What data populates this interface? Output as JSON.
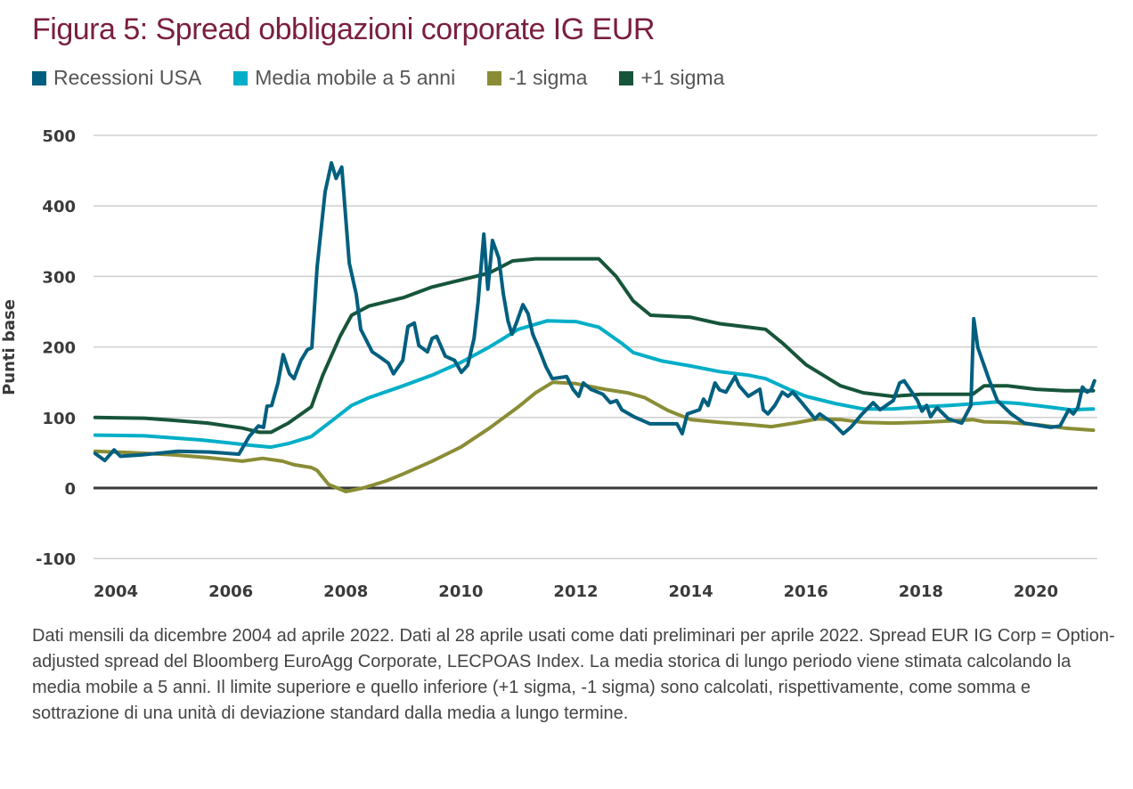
{
  "title": "Figura 5: Spread obbligazioni corporate IG EUR",
  "footnote": "Dati mensili da dicembre 2004 ad aprile 2022. Dati al 28 aprile usati come dati preliminari per aprile 2022. Spread EUR IG Corp = Option-adjusted spread del Bloomberg EuroAgg Corporate, LECPOAS Index. La media storica di lungo periodo viene stimata calcolando la media mobile a 5 anni. Il limite superiore e quello inferiore (+1 sigma, -1 sigma) sono calcolati, rispettivamente, come somma e sottrazione di una unità di deviazione standard dalla media a lungo termine.",
  "chart_data": {
    "type": "line",
    "title": "Figura 5: Spread obbligazioni corporate IG EUR",
    "xlabel": "",
    "ylabel": "Punti base",
    "xticks": [
      "2004",
      "2006",
      "2008",
      "2010",
      "2012",
      "2014",
      "2016",
      "2018",
      "2020"
    ],
    "yticks": [
      "500",
      "400",
      "300",
      "200",
      "100",
      "0",
      "-100"
    ],
    "xlim": [
      2003.6,
      2021.05
    ],
    "ylim": [
      -100,
      500
    ],
    "grid": true,
    "legend_position": "top-left",
    "series": [
      {
        "name": "Recessioni USA",
        "color": "#005f7f",
        "x": [
          2003.64,
          2003.81,
          2003.97,
          2004.08,
          2004.46,
          2005.08,
          2005.63,
          2006.14,
          2006.32,
          2006.48,
          2006.57,
          2006.63,
          2006.71,
          2006.82,
          2006.91,
          2007.02,
          2007.1,
          2007.22,
          2007.33,
          2007.41,
          2007.5,
          2007.64,
          2007.75,
          2007.83,
          2007.93,
          2008.06,
          2008.18,
          2008.26,
          2008.46,
          2008.57,
          2008.74,
          2008.83,
          2008.99,
          2009.08,
          2009.19,
          2009.27,
          2009.42,
          2009.5,
          2009.58,
          2009.73,
          2009.89,
          2010.01,
          2010.12,
          2010.23,
          2010.3,
          2010.4,
          2010.47,
          2010.55,
          2010.66,
          2010.74,
          2010.82,
          2010.89,
          2010.97,
          2011.08,
          2011.17,
          2011.25,
          2011.36,
          2011.48,
          2011.59,
          2011.84,
          2011.95,
          2012.05,
          2012.13,
          2012.26,
          2012.47,
          2012.6,
          2012.71,
          2012.8,
          2013.01,
          2013.29,
          2013.76,
          2013.85,
          2013.94,
          2014.15,
          2014.22,
          2014.3,
          2014.42,
          2014.5,
          2014.61,
          2014.77,
          2014.84,
          2015.0,
          2015.2,
          2015.26,
          2015.34,
          2015.46,
          2015.59,
          2015.69,
          2015.77,
          2015.93,
          2016.16,
          2016.24,
          2016.47,
          2016.65,
          2016.78,
          2016.98,
          2017.17,
          2017.29,
          2017.52,
          2017.63,
          2017.71,
          2017.94,
          2018.02,
          2018.1,
          2018.17,
          2018.28,
          2018.48,
          2018.71,
          2018.87,
          2018.92,
          2018.99,
          2019.18,
          2019.33,
          2019.57,
          2019.8,
          2020.26,
          2020.42,
          2020.57,
          2020.65,
          2020.73,
          2020.81,
          2020.89,
          2020.96,
          2021.02
        ],
        "values": [
          49,
          39,
          54,
          45,
          47,
          52,
          51,
          48,
          73,
          88,
          86,
          116,
          117,
          149,
          189,
          162,
          155,
          181,
          196,
          199,
          313,
          420,
          461,
          439,
          455,
          319,
          275,
          225,
          193,
          187,
          177,
          162,
          181,
          229,
          234,
          202,
          193,
          212,
          215,
          187,
          181,
          164,
          174,
          212,
          263,
          360,
          282,
          351,
          326,
          275,
          237,
          218,
          235,
          260,
          247,
          218,
          197,
          172,
          155,
          158,
          140,
          130,
          149,
          140,
          133,
          121,
          124,
          111,
          101,
          91,
          91,
          77,
          105,
          111,
          126,
          117,
          149,
          139,
          136,
          158,
          145,
          130,
          140,
          111,
          105,
          117,
          136,
          130,
          136,
          121,
          98,
          105,
          92,
          77,
          86,
          105,
          121,
          111,
          124,
          149,
          152,
          124,
          109,
          117,
          101,
          114,
          98,
          92,
          117,
          240,
          199,
          155,
          124,
          105,
          92,
          86,
          88,
          111,
          105,
          114,
          143,
          136,
          139,
          152
        ]
      },
      {
        "name": "Media mobile a 5 anni",
        "color": "#00aec7",
        "x": [
          2003.64,
          2004.5,
          2005.5,
          2006.3,
          2006.7,
          2007.0,
          2007.4,
          2007.8,
          2008.1,
          2008.4,
          2009.0,
          2009.5,
          2010.0,
          2010.5,
          2011.0,
          2011.5,
          2012.0,
          2012.4,
          2012.8,
          2013.0,
          2013.5,
          2014.0,
          2014.5,
          2015.0,
          2015.3,
          2015.7,
          2016.0,
          2016.5,
          2017.0,
          2017.5,
          2018.0,
          2018.5,
          2019.0,
          2019.3,
          2019.7,
          2020.2,
          2020.6,
          2021.0
        ],
        "values": [
          75,
          74,
          68,
          61,
          58,
          63,
          73,
          98,
          117,
          128,
          145,
          160,
          178,
          200,
          225,
          237,
          236,
          228,
          205,
          192,
          180,
          173,
          165,
          160,
          155,
          140,
          130,
          120,
          112,
          112,
          115,
          117,
          120,
          122,
          120,
          115,
          111,
          112
        ]
      },
      {
        "name": "-1 sigma",
        "color": "#8a8d35",
        "x": [
          2003.64,
          2004.3,
          2005.0,
          2005.6,
          2006.2,
          2006.55,
          2006.9,
          2007.1,
          2007.4,
          2007.5,
          2007.7,
          2008.0,
          2008.3,
          2008.7,
          2009.0,
          2009.5,
          2010.0,
          2010.5,
          2011.0,
          2011.3,
          2011.6,
          2012.0,
          2012.5,
          2012.9,
          2013.2,
          2013.6,
          2014.0,
          2014.5,
          2015.0,
          2015.4,
          2015.8,
          2016.2,
          2016.6,
          2017.0,
          2017.5,
          2018.0,
          2018.5,
          2018.9,
          2019.1,
          2019.5,
          2020.0,
          2020.5,
          2021.0
        ],
        "values": [
          52,
          50,
          47,
          43,
          38,
          42,
          38,
          33,
          29,
          25,
          5,
          -5,
          0,
          10,
          20,
          38,
          58,
          85,
          115,
          135,
          150,
          148,
          140,
          135,
          128,
          110,
          97,
          93,
          90,
          87,
          92,
          98,
          97,
          93,
          92,
          93,
          95,
          97,
          94,
          93,
          90,
          85,
          82
        ]
      },
      {
        "name": "+1 sigma",
        "color": "#17553a",
        "x": [
          2003.64,
          2004.5,
          2005.0,
          2005.6,
          2006.2,
          2006.5,
          2006.7,
          2007.0,
          2007.4,
          2007.6,
          2007.9,
          2008.1,
          2008.4,
          2009.0,
          2009.5,
          2010.0,
          2010.5,
          2010.9,
          2011.3,
          2012.0,
          2012.4,
          2012.7,
          2013.0,
          2013.3,
          2014.0,
          2014.5,
          2015.0,
          2015.3,
          2015.6,
          2016.0,
          2016.3,
          2016.6,
          2017.0,
          2017.5,
          2018.0,
          2018.9,
          2019.1,
          2019.5,
          2020.0,
          2020.5,
          2021.0
        ],
        "values": [
          100,
          99,
          96,
          92,
          85,
          79,
          79,
          92,
          115,
          160,
          215,
          245,
          258,
          270,
          285,
          295,
          305,
          322,
          325,
          325,
          325,
          300,
          265,
          245,
          242,
          233,
          228,
          225,
          205,
          175,
          160,
          145,
          135,
          130,
          133,
          133,
          145,
          145,
          140,
          138,
          138
        ]
      }
    ]
  }
}
